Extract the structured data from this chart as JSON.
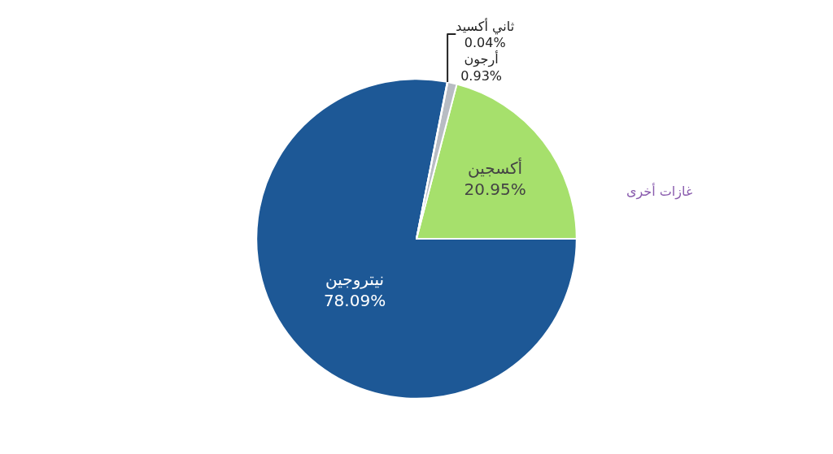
{
  "chart_data": {
    "type": "pie",
    "categories": [
      "نيتروجين",
      "أكسجين",
      "أرجون",
      "ثاني أكسيد",
      "غازات أخرى"
    ],
    "values": [
      78.09,
      20.95,
      0.93,
      0.04,
      null
    ],
    "value_labels": [
      "78.09%",
      "20.95%",
      "0.93%",
      "0.04%",
      null
    ],
    "colors": [
      "#1d5896",
      "#a6e06c",
      "#b8bcc3",
      "#e5771d",
      "#8a5cae"
    ]
  }
}
